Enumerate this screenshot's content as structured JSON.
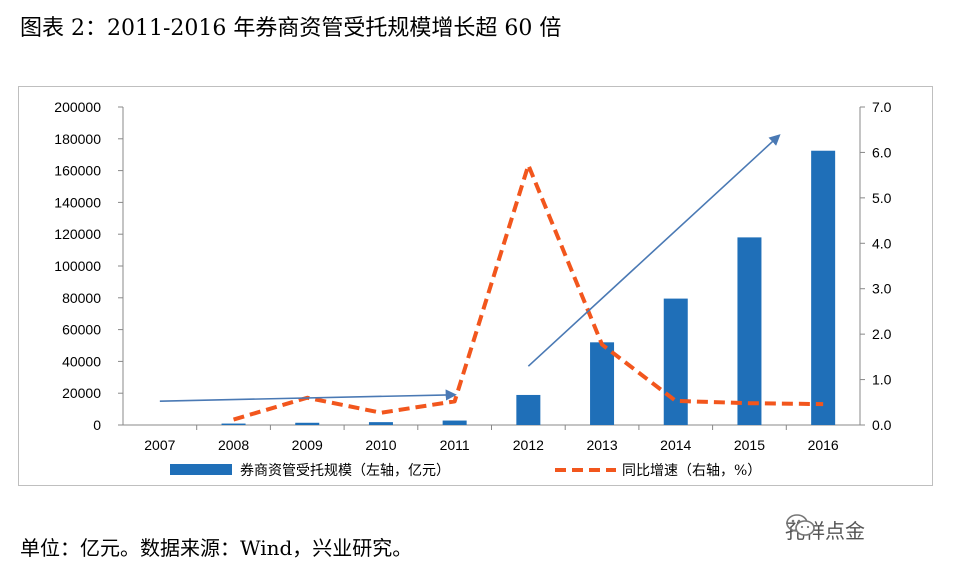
{
  "title": "图表 2：2011-2016 年券商资管受托规模增长超 60 倍",
  "footer": "单位：亿元。数据来源：Wind，兴业研究。",
  "watermark": {
    "text": "孔祥点金",
    "icon": "wechat-icon"
  },
  "colors": {
    "bar": "#1f6fb8",
    "line": "#f2561d",
    "arrow": "#4a79b4",
    "axis": "#888888"
  },
  "chart_data": {
    "type": "bar",
    "categories": [
      "2007",
      "2008",
      "2009",
      "2010",
      "2011",
      "2012",
      "2013",
      "2014",
      "2015",
      "2016"
    ],
    "series": [
      {
        "name": "券商资管受托规模（左轴，亿元）",
        "type": "bar",
        "axis": "left",
        "values": [
          null,
          900,
          1400,
          1800,
          2800,
          18900,
          52000,
          79500,
          118000,
          172500
        ]
      },
      {
        "name": "同比增速（右轴，%）",
        "type": "line",
        "axis": "right",
        "style": "dashed",
        "values": [
          null,
          0.12,
          0.6,
          0.27,
          0.52,
          5.72,
          1.77,
          0.53,
          0.48,
          0.46
        ]
      }
    ],
    "left_axis": {
      "min": 0,
      "max": 200000,
      "step": 20000,
      "ticks": [
        "0",
        "20000",
        "40000",
        "60000",
        "80000",
        "100000",
        "120000",
        "140000",
        "160000",
        "180000",
        "200000"
      ]
    },
    "right_axis": {
      "min": 0,
      "max": 7,
      "step": 1,
      "ticks": [
        "0.0",
        "1.0",
        "2.0",
        "3.0",
        "4.0",
        "5.0",
        "6.0",
        "7.0"
      ]
    },
    "annotations": [
      {
        "type": "arrow",
        "axis": "left",
        "from": {
          "x": "2007",
          "y": 15000
        },
        "to": {
          "x": "2011",
          "y": 19000
        }
      },
      {
        "type": "arrow",
        "axis": "left",
        "from": {
          "x": "2012",
          "y": 37000
        },
        "to": {
          "x": "2015.4",
          "y": 182000
        }
      }
    ],
    "legend": {
      "position": "bottom"
    }
  }
}
